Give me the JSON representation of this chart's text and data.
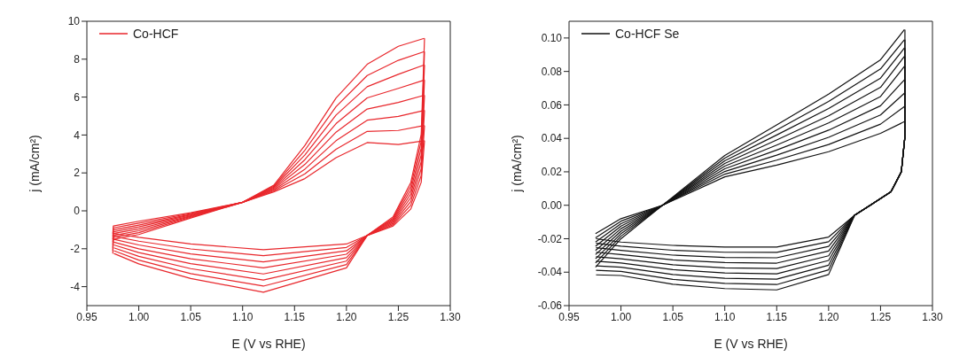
{
  "chart_data": [
    {
      "type": "line",
      "xlabel": "E (V vs RHE)",
      "ylabel": "j (mA/cm²)",
      "legend": "top left",
      "xlim": [
        0.95,
        1.3
      ],
      "xticks": [
        0.95,
        {
          "value": 1.0,
          "label": "1.00"
        },
        1.05,
        {
          "value": 1.1,
          "label": "1.10"
        },
        1.15,
        {
          "value": 1.2,
          "label": "1.20"
        },
        1.25,
        {
          "value": 1.3,
          "label": "1.30"
        }
      ],
      "ylim": [
        -5,
        10
      ],
      "yticks": [
        -4,
        -2,
        0,
        2,
        4,
        6,
        8,
        10
      ],
      "series": [
        {
          "name": "Co-HCF",
          "color": "#e8262b",
          "x": [
            0.975,
            0.9755,
            1.0,
            1.05,
            1.1,
            1.13,
            1.16,
            1.19,
            1.22,
            1.25,
            1.275
          ],
          "values": [
            -1.2,
            -0.8,
            -0.55,
            -0.1,
            0.45,
            1.0,
            1.7,
            2.8,
            3.6,
            3.5,
            3.7
          ]
        },
        {
          "color": "#e8262b",
          "x": [
            1.2752,
            1.272,
            1.262,
            1.245,
            1.22,
            1.2,
            1.12,
            1.05,
            1.0,
            0.976
          ],
          "values": [
            3.7,
            1.5,
            0.1,
            -0.8,
            -1.3,
            -1.75,
            -2.05,
            -1.75,
            -1.4,
            -1.2
          ]
        },
        {
          "color": "#e8262b",
          "x": [
            0.975,
            0.9755,
            1.0,
            1.05,
            1.1,
            1.13,
            1.16,
            1.19,
            1.22,
            1.25,
            1.275
          ],
          "values": [
            -1.35,
            -0.9,
            -0.65,
            -0.14,
            0.45,
            1.05,
            1.95,
            3.25,
            4.19,
            4.24,
            4.5
          ]
        },
        {
          "color": "#e8262b",
          "x": [
            1.2752,
            1.272,
            1.262,
            1.245,
            1.22,
            1.2,
            1.12,
            1.05,
            1.0,
            0.976
          ],
          "values": [
            4.5,
            1.86,
            0.3,
            -0.73,
            -1.3,
            -1.93,
            -2.37,
            -2.01,
            -1.6,
            -1.35
          ]
        },
        {
          "color": "#e8262b",
          "x": [
            0.975,
            0.9755,
            1.0,
            1.05,
            1.1,
            1.13,
            1.16,
            1.19,
            1.22,
            1.25,
            1.275
          ],
          "values": [
            -1.5,
            -1.0,
            -0.75,
            -0.18,
            0.45,
            1.1,
            2.2,
            3.7,
            4.78,
            4.98,
            5.3
          ]
        },
        {
          "color": "#e8262b",
          "x": [
            1.2752,
            1.272,
            1.262,
            1.245,
            1.22,
            1.2,
            1.12,
            1.05,
            1.0,
            0.976
          ],
          "values": [
            5.3,
            2.22,
            0.5,
            -0.66,
            -1.3,
            -2.11,
            -2.69,
            -2.27,
            -1.8,
            -1.5
          ]
        },
        {
          "color": "#e8262b",
          "x": [
            0.975,
            0.9755,
            1.0,
            1.05,
            1.1,
            1.13,
            1.16,
            1.19,
            1.22,
            1.25,
            1.275
          ],
          "values": [
            -1.65,
            -1.1,
            -0.85,
            -0.22,
            0.45,
            1.15,
            2.45,
            4.15,
            5.37,
            5.72,
            6.1
          ]
        },
        {
          "color": "#e8262b",
          "x": [
            1.2752,
            1.272,
            1.262,
            1.245,
            1.22,
            1.2,
            1.12,
            1.05,
            1.0,
            0.976
          ],
          "values": [
            6.1,
            2.58,
            0.7,
            -0.59,
            -1.3,
            -2.29,
            -3.01,
            -2.53,
            -2.0,
            -1.65
          ]
        },
        {
          "color": "#e8262b",
          "x": [
            0.975,
            0.9755,
            1.0,
            1.05,
            1.1,
            1.13,
            1.16,
            1.19,
            1.22,
            1.25,
            1.275
          ],
          "values": [
            -1.8,
            -1.2,
            -0.95,
            -0.26,
            0.45,
            1.2,
            2.7,
            4.6,
            5.96,
            6.46,
            6.9
          ]
        },
        {
          "color": "#e8262b",
          "x": [
            1.2752,
            1.272,
            1.262,
            1.245,
            1.22,
            1.2,
            1.12,
            1.05,
            1.0,
            0.976
          ],
          "values": [
            6.9,
            2.94,
            0.9,
            -0.52,
            -1.3,
            -2.47,
            -3.33,
            -2.79,
            -2.2,
            -1.8
          ]
        },
        {
          "color": "#e8262b",
          "x": [
            0.975,
            0.9755,
            1.0,
            1.05,
            1.1,
            1.13,
            1.16,
            1.19,
            1.22,
            1.25,
            1.275
          ],
          "values": [
            -1.95,
            -1.3,
            -1.05,
            -0.3,
            0.45,
            1.25,
            2.95,
            5.05,
            6.55,
            7.2,
            7.7
          ]
        },
        {
          "color": "#e8262b",
          "x": [
            1.2752,
            1.272,
            1.262,
            1.245,
            1.22,
            1.2,
            1.12,
            1.05,
            1.0,
            0.976
          ],
          "values": [
            7.7,
            3.3,
            1.1,
            -0.45,
            -1.3,
            -2.65,
            -3.65,
            -3.05,
            -2.4,
            -1.95
          ]
        },
        {
          "color": "#e8262b",
          "x": [
            0.975,
            0.9755,
            1.0,
            1.05,
            1.1,
            1.13,
            1.16,
            1.19,
            1.22,
            1.25,
            1.275
          ],
          "values": [
            -2.1,
            -1.4,
            -1.15,
            -0.34,
            0.45,
            1.3,
            3.2,
            5.5,
            7.14,
            7.94,
            8.4
          ]
        },
        {
          "color": "#e8262b",
          "x": [
            1.2752,
            1.272,
            1.262,
            1.245,
            1.22,
            1.2,
            1.12,
            1.05,
            1.0,
            0.976
          ],
          "values": [
            8.4,
            3.66,
            1.3,
            -0.38,
            -1.3,
            -2.83,
            -3.97,
            -3.31,
            -2.6,
            -2.1
          ]
        },
        {
          "color": "#e8262b",
          "x": [
            0.975,
            0.9755,
            1.0,
            1.05,
            1.1,
            1.13,
            1.16,
            1.19,
            1.22,
            1.25,
            1.275
          ],
          "values": [
            -2.25,
            -1.5,
            -1.25,
            -0.38,
            0.45,
            1.35,
            3.45,
            5.95,
            7.73,
            8.68,
            9.1
          ]
        },
        {
          "color": "#e8262b",
          "x": [
            1.2752,
            1.272,
            1.262,
            1.245,
            1.22,
            1.2,
            1.12,
            1.05,
            1.0,
            0.976
          ],
          "values": [
            9.1,
            4.02,
            1.5,
            -0.31,
            -1.3,
            -3.01,
            -4.29,
            -3.57,
            -2.8,
            -2.25
          ]
        }
      ]
    },
    {
      "type": "line",
      "xlabel": "E (V vs RHE)",
      "ylabel": "j (mA/cm²)",
      "legend": "top left",
      "xlim": [
        0.95,
        1.3
      ],
      "xticks": [
        0.95,
        {
          "value": 1.0,
          "label": "1.00"
        },
        1.05,
        {
          "value": 1.1,
          "label": "1.10"
        },
        1.15,
        {
          "value": 1.2,
          "label": "1.20"
        },
        1.25,
        {
          "value": 1.3,
          "label": "1.30"
        }
      ],
      "ylim": [
        -0.06,
        0.11
      ],
      "yticks": [
        {
          "value": -0.06,
          "label": "-0.06"
        },
        {
          "value": -0.04,
          "label": "-0.04"
        },
        {
          "value": -0.02,
          "label": "-0.02"
        },
        {
          "value": 0,
          "label": "0.00"
        },
        {
          "value": 0.02,
          "label": "0.02"
        },
        {
          "value": 0.04,
          "label": "0.04"
        },
        {
          "value": 0.06,
          "label": "0.06"
        },
        {
          "value": 0.08,
          "label": "0.08"
        },
        {
          "value": 0.1,
          "label": "0.10"
        }
      ],
      "series": [
        {
          "name": "Co-HCF Se",
          "color": "#111111",
          "x": [
            0.9755,
            1.0,
            1.04,
            1.1,
            1.15,
            1.2,
            1.25,
            1.273
          ],
          "values": [
            -0.017,
            -0.008,
            0,
            0.017,
            0.024,
            0.032,
            0.043,
            0.05
          ]
        },
        {
          "color": "#111111",
          "x": [
            1.2735,
            1.2733,
            1.27,
            1.26,
            1.24,
            1.225,
            1.2,
            1.15,
            1.1,
            1.05,
            1.0,
            0.976
          ],
          "values": [
            0.05,
            0.04,
            0.02,
            0.008,
            0,
            -0.006,
            -0.019,
            -0.025,
            -0.025,
            -0.024,
            -0.022,
            -0.02
          ]
        },
        {
          "color": "#111111",
          "x": [
            0.9755,
            1.0,
            1.04,
            1.1,
            1.15,
            1.2,
            1.25,
            1.273
          ],
          "values": [
            -0.0195,
            -0.0095,
            0,
            0.0186,
            0.027,
            0.0363,
            0.0485,
            0.059
          ]
        },
        {
          "color": "#111111",
          "x": [
            1.2735,
            1.2733,
            1.27,
            1.26,
            1.24,
            1.225,
            1.2,
            1.15,
            1.1,
            1.05,
            1.0,
            0.976
          ],
          "values": [
            0.059,
            0.04,
            0.02,
            0.008,
            0,
            -0.006,
            -0.0218,
            -0.0282,
            -0.0281,
            -0.0269,
            -0.0245,
            -0.0227
          ]
        },
        {
          "color": "#111111",
          "x": [
            0.9755,
            1.0,
            1.04,
            1.1,
            1.15,
            1.2,
            1.25,
            1.273
          ],
          "values": [
            -0.022,
            -0.011,
            0,
            0.0202,
            0.03,
            0.0406,
            0.054,
            0.067
          ]
        },
        {
          "color": "#111111",
          "x": [
            1.2735,
            1.2733,
            1.27,
            1.26,
            1.24,
            1.225,
            1.2,
            1.15,
            1.1,
            1.05,
            1.0,
            0.976
          ],
          "values": [
            0.067,
            0.04,
            0.02,
            0.008,
            0,
            -0.006,
            -0.0246,
            -0.0314,
            -0.0312,
            -0.0298,
            -0.027,
            -0.0254
          ]
        },
        {
          "color": "#111111",
          "x": [
            0.9755,
            1.0,
            1.04,
            1.1,
            1.15,
            1.2,
            1.25,
            1.273
          ],
          "values": [
            -0.0245,
            -0.0125,
            0,
            0.0218,
            0.033,
            0.0449,
            0.0595,
            0.075
          ]
        },
        {
          "color": "#111111",
          "x": [
            1.2735,
            1.2733,
            1.27,
            1.26,
            1.24,
            1.225,
            1.2,
            1.15,
            1.1,
            1.05,
            1.0,
            0.976
          ],
          "values": [
            0.075,
            0.04,
            0.02,
            0.008,
            0,
            -0.006,
            -0.0274,
            -0.0346,
            -0.0343,
            -0.0327,
            -0.0295,
            -0.0281
          ]
        },
        {
          "color": "#111111",
          "x": [
            0.9755,
            1.0,
            1.04,
            1.1,
            1.15,
            1.2,
            1.25,
            1.273
          ],
          "values": [
            -0.027,
            -0.014,
            0,
            0.0234,
            0.036,
            0.0492,
            0.065,
            0.083
          ]
        },
        {
          "color": "#111111",
          "x": [
            1.2735,
            1.2733,
            1.27,
            1.26,
            1.24,
            1.225,
            1.2,
            1.15,
            1.1,
            1.05,
            1.0,
            0.976
          ],
          "values": [
            0.083,
            0.04,
            0.02,
            0.008,
            0,
            -0.006,
            -0.0302,
            -0.0378,
            -0.0374,
            -0.0356,
            -0.032,
            -0.0308
          ]
        },
        {
          "color": "#111111",
          "x": [
            0.9755,
            1.0,
            1.04,
            1.1,
            1.15,
            1.2,
            1.25,
            1.273
          ],
          "values": [
            -0.0295,
            -0.0155,
            0,
            0.025,
            0.039,
            0.0535,
            0.0705,
            0.089
          ]
        },
        {
          "color": "#111111",
          "x": [
            1.2735,
            1.2733,
            1.27,
            1.26,
            1.24,
            1.225,
            1.2,
            1.15,
            1.1,
            1.05,
            1.0,
            0.976
          ],
          "values": [
            0.089,
            0.04,
            0.02,
            0.008,
            0,
            -0.006,
            -0.033,
            -0.041,
            -0.0405,
            -0.0385,
            -0.0345,
            -0.0335
          ]
        },
        {
          "color": "#111111",
          "x": [
            0.9755,
            1.0,
            1.04,
            1.1,
            1.15,
            1.2,
            1.25,
            1.273
          ],
          "values": [
            -0.032,
            -0.017,
            0,
            0.0266,
            0.042,
            0.0578,
            0.076,
            0.094
          ]
        },
        {
          "color": "#111111",
          "x": [
            1.2735,
            1.2733,
            1.27,
            1.26,
            1.24,
            1.225,
            1.2,
            1.15,
            1.1,
            1.05,
            1.0,
            0.976
          ],
          "values": [
            0.094,
            0.04,
            0.02,
            0.008,
            0,
            -0.006,
            -0.0358,
            -0.0442,
            -0.0436,
            -0.0414,
            -0.037,
            -0.0362
          ]
        },
        {
          "color": "#111111",
          "x": [
            0.9755,
            1.0,
            1.04,
            1.1,
            1.15,
            1.2,
            1.25,
            1.273
          ],
          "values": [
            -0.0345,
            -0.0185,
            0,
            0.0282,
            0.045,
            0.0621,
            0.0815,
            0.099
          ]
        },
        {
          "color": "#111111",
          "x": [
            1.2735,
            1.2733,
            1.27,
            1.26,
            1.24,
            1.225,
            1.2,
            1.15,
            1.1,
            1.05,
            1.0,
            0.976
          ],
          "values": [
            0.099,
            0.04,
            0.02,
            0.008,
            0,
            -0.006,
            -0.0386,
            -0.0474,
            -0.0467,
            -0.0443,
            -0.0395,
            -0.0389
          ]
        },
        {
          "color": "#111111",
          "x": [
            0.9755,
            1.0,
            1.04,
            1.1,
            1.15,
            1.2,
            1.25,
            1.273
          ],
          "values": [
            -0.037,
            -0.02,
            0,
            0.0298,
            0.048,
            0.0664,
            0.087,
            0.105
          ]
        },
        {
          "color": "#111111",
          "x": [
            1.2735,
            1.2733,
            1.27,
            1.26,
            1.24,
            1.225,
            1.2,
            1.15,
            1.1,
            1.05,
            1.0,
            0.976
          ],
          "values": [
            0.105,
            0.04,
            0.02,
            0.008,
            0,
            -0.006,
            -0.0414,
            -0.0506,
            -0.0498,
            -0.0472,
            -0.042,
            -0.0416
          ]
        }
      ]
    }
  ]
}
